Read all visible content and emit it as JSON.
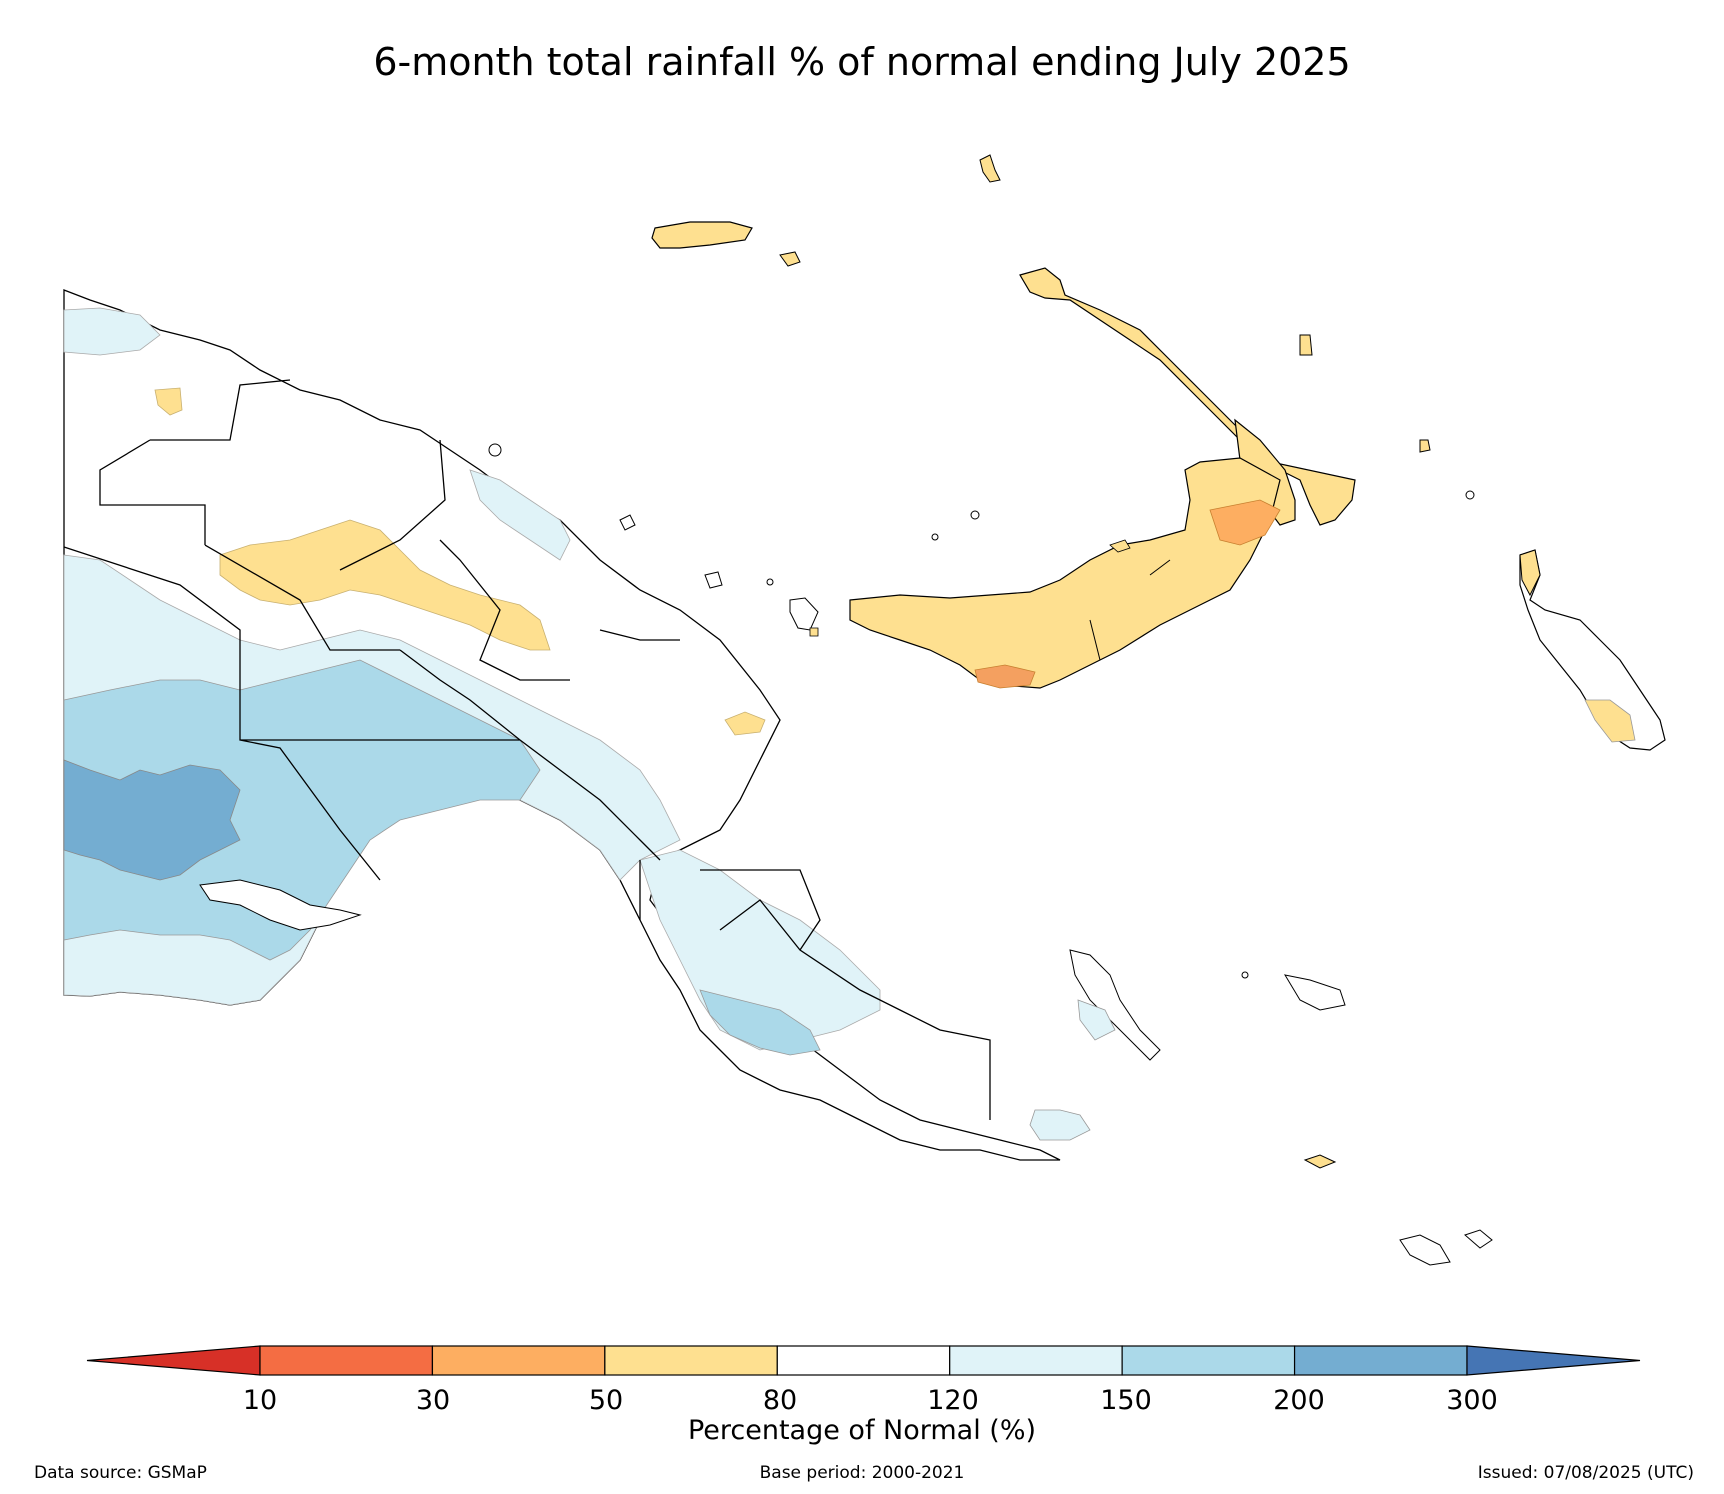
{
  "title": "6-month total rainfall % of normal ending July 2025",
  "colorbar": {
    "label": "Percentage of Normal (%)",
    "ticks": [
      "10",
      "30",
      "50",
      "80",
      "120",
      "150",
      "200",
      "300"
    ],
    "colors": [
      "#d73027",
      "#f46d43",
      "#fdae61",
      "#fee090",
      "#ffffff",
      "#e0f3f8",
      "#abd9e9",
      "#74add1",
      "#4575b4"
    ]
  },
  "footer": {
    "source": "Data source: GSMaP",
    "base_period": "Base period: 2000-2021",
    "issued": "Issued: 07/08/2025 (UTC)"
  },
  "map_regions": {
    "land_color": "#ffffff",
    "border_color": "#000000",
    "contour_line_color": "#999999"
  }
}
